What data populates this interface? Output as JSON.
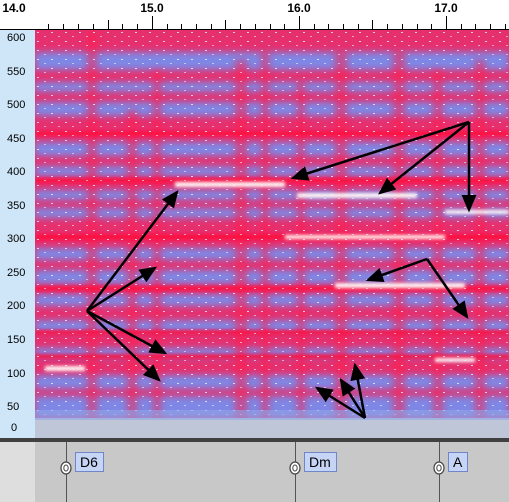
{
  "ruler": {
    "ticks": [
      {
        "label": "14.0",
        "value": 14.0
      },
      {
        "label": "15.0",
        "value": 15.0
      },
      {
        "label": "16.0",
        "value": 16.0
      },
      {
        "label": "17.0",
        "value": 17.0
      }
    ]
  },
  "frequency_axis": {
    "labels": [
      "600",
      "550",
      "500",
      "450",
      "400",
      "350",
      "300",
      "250",
      "200",
      "150",
      "100",
      "50",
      "0"
    ]
  },
  "chords": [
    {
      "label": "D6",
      "time": 14.45
    },
    {
      "label": "Dm",
      "time": 16.2
    },
    {
      "label": "A",
      "time": 17.2
    }
  ],
  "colors": {
    "spectro_hot": "#e8225e",
    "spectro_cool": "#6a8ef0",
    "track_bg": "#c8c8c8",
    "chord_label_bg": "#c6d4f6"
  }
}
